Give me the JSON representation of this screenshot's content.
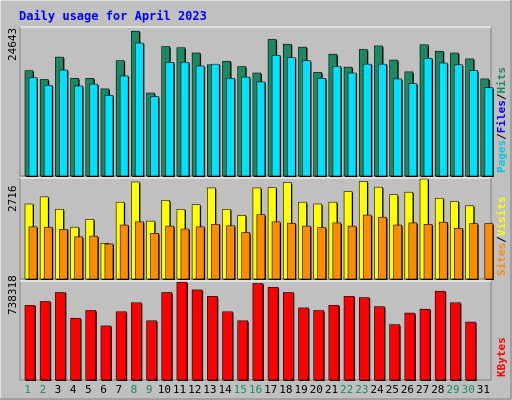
{
  "title": "Daily usage for April 2023",
  "colors": {
    "background": "#c0c0c0",
    "frame_light": "#ffffff",
    "frame_dark": "#808080",
    "plot_edge": "#000000",
    "title_text": "#0000ff",
    "hits": "#1b8a63",
    "files": "#00d0ff",
    "pages": "#00e0ff",
    "visits": "#ffff00",
    "sites": "#ff8c00",
    "kbytes": "#ff0000",
    "weekday_label": "#000000",
    "weekend_label": "#1b8a63"
  },
  "panels": {
    "top": {
      "max_label": "24643",
      "legend": [
        {
          "text": "Hits",
          "color": "#1b8a63"
        },
        {
          "text": "/",
          "color": "#000000"
        },
        {
          "text": "Files",
          "color": "#0000ff"
        },
        {
          "text": "/",
          "color": "#000000"
        },
        {
          "text": "Pages",
          "color": "#00c8e8"
        }
      ]
    },
    "mid": {
      "max_label": "2716",
      "legend": [
        {
          "text": "Visits",
          "color": "#ffff00"
        },
        {
          "text": "/",
          "color": "#000000"
        },
        {
          "text": "Sites",
          "color": "#ff8c00"
        }
      ]
    },
    "bot": {
      "max_label": "738318",
      "legend": [
        {
          "text": "KBytes",
          "color": "#ff0000"
        }
      ]
    }
  },
  "chart_data": {
    "type": "bar",
    "title": "Daily usage for April 2023",
    "categories": [
      "1",
      "2",
      "3",
      "4",
      "5",
      "6",
      "7",
      "8",
      "9",
      "10",
      "11",
      "12",
      "13",
      "14",
      "15",
      "16",
      "17",
      "18",
      "19",
      "20",
      "21",
      "22",
      "23",
      "24",
      "25",
      "26",
      "27",
      "28",
      "29",
      "30",
      "31"
    ],
    "weekend_days": [
      "1",
      "2",
      "8",
      "9",
      "15",
      "16",
      "22",
      "23",
      "29",
      "30"
    ],
    "panels": [
      {
        "name": "hits-files-pages",
        "max": 24643,
        "series": [
          {
            "name": "Hits",
            "values": [
              17900,
              16400,
              20200,
              16600,
              16600,
              14800,
              19600,
              24600,
              14100,
              22000,
              21800,
              20900,
              18900,
              19500,
              18600,
              17500,
              23200,
              22400,
              21900,
              17600,
              20700,
              18500,
              21500,
              22100,
              19700,
              17700,
              22300,
              21200,
              20900,
              19900,
              16500
            ]
          },
          {
            "name": "Files",
            "values": [
              16700,
              0,
              18000,
              0,
              15600,
              0,
              17000,
              22600,
              0,
              0,
              19300,
              0,
              19000,
              0,
              16800,
              0,
              20500,
              0,
              19600,
              0,
              18600,
              0,
              19000,
              0,
              16500,
              0,
              20000,
              0,
              18900,
              0,
              15000
            ]
          },
          {
            "name": "Pages",
            "values": [
              16700,
              15400,
              18000,
              15300,
              15600,
              13700,
              17000,
              22600,
              13500,
              19300,
              19300,
              18700,
              19000,
              16600,
              16800,
              16000,
              20500,
              20100,
              19600,
              16600,
              18600,
              17500,
              19000,
              19000,
              16500,
              15700,
              20000,
              19200,
              18900,
              17900,
              15000
            ]
          }
        ]
      },
      {
        "name": "visits-sites",
        "max": 2716,
        "series": [
          {
            "name": "Visits",
            "values": [
              2100,
              2300,
              1950,
              1450,
              1670,
              1000,
              2150,
              2716,
              1620,
              2200,
              1950,
              2080,
              2550,
              1950,
              1780,
              2550,
              2560,
              2700,
              2150,
              2100,
              2150,
              2450,
              2730,
              2570,
              2360,
              2430,
              2800,
              2260,
              2170,
              2050,
              0
            ]
          },
          {
            "name": "Sites",
            "values": [
              1460,
              1450,
              1390,
              1180,
              1200,
              980,
              1510,
              1600,
              1280,
              1480,
              1400,
              1460,
              1530,
              1490,
              1300,
              1800,
              1600,
              1560,
              1480,
              1440,
              1570,
              1480,
              1790,
              1730,
              1510,
              1570,
              1530,
              1590,
              1420,
              1550,
              1550
            ]
          }
        ]
      },
      {
        "name": "kbytes",
        "max": 738318,
        "series": [
          {
            "name": "KBytes",
            "values": [
              580000,
              610000,
              680000,
              480000,
              540000,
              420000,
              530000,
              600000,
              460000,
              680000,
              760000,
              700000,
              650000,
              530000,
              460000,
              750000,
              720000,
              680000,
              560000,
              540000,
              580000,
              650000,
              640000,
              570000,
              430000,
              520000,
              550000,
              690000,
              600000,
              450000,
              0
            ]
          }
        ]
      }
    ]
  }
}
